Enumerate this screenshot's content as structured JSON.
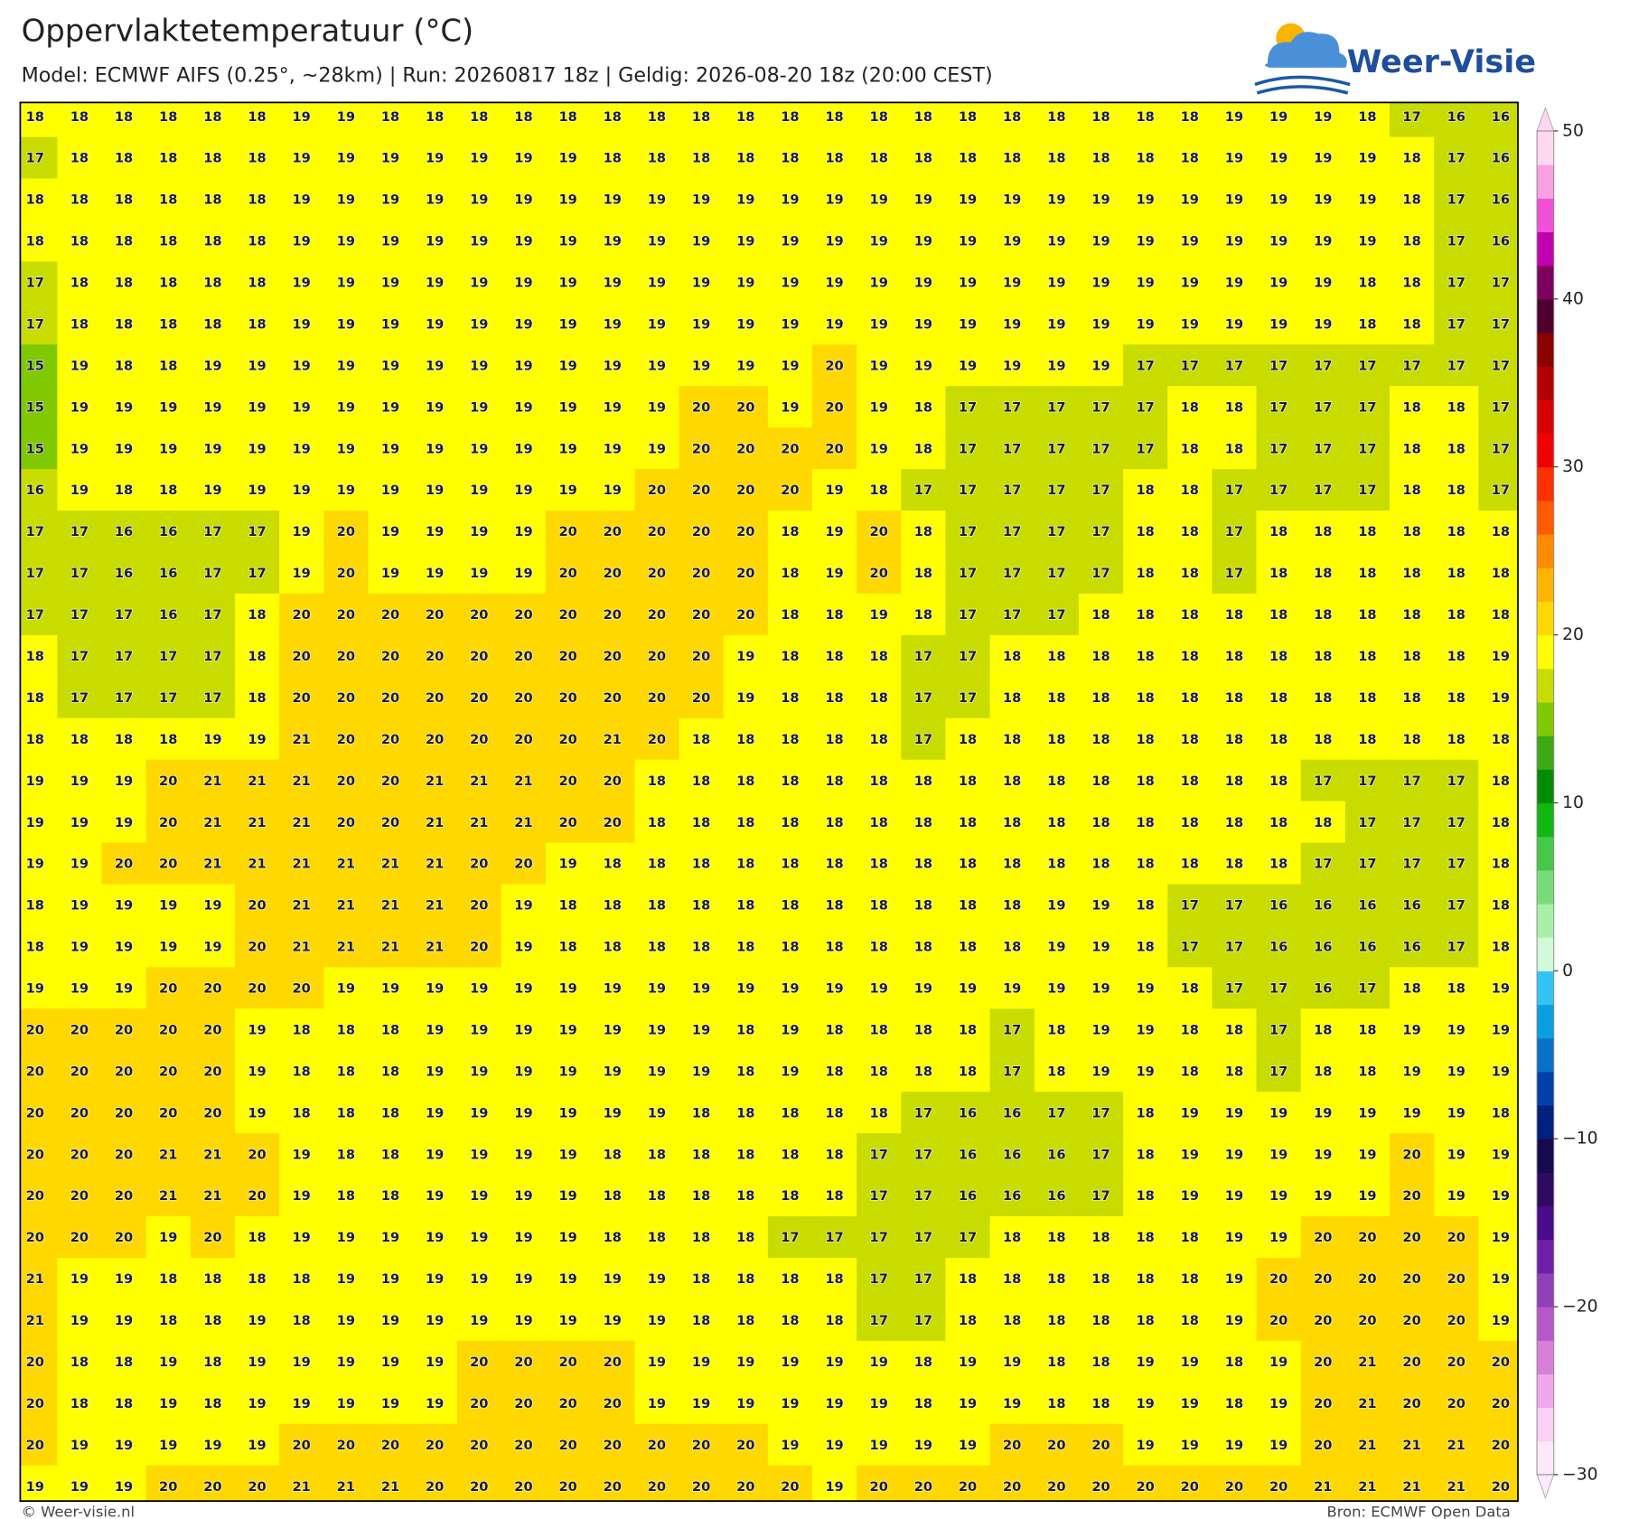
{
  "chart_data": {
    "type": "grid-map",
    "title": "Oppervlaktetemperatuur (°C)",
    "subtitle": "Model: ECMWF AIFS (0.25°, ~28km)  |  Run: 20260817 18z  |  Geldig: 2026-08-20 18z (20:00 CEST)",
    "grid": [
      [
        18,
        18,
        18,
        18,
        18,
        18,
        19,
        19,
        18,
        18,
        18,
        18,
        18,
        18,
        18,
        18,
        18,
        18,
        18,
        18,
        18,
        18,
        18,
        18,
        18,
        18,
        18,
        19,
        19,
        19,
        18,
        17,
        16,
        16
      ],
      [
        17,
        18,
        18,
        18,
        18,
        18,
        19,
        19,
        19,
        19,
        19,
        19,
        19,
        18,
        18,
        18,
        18,
        18,
        18,
        18,
        18,
        18,
        18,
        18,
        18,
        18,
        18,
        19,
        19,
        19,
        19,
        18,
        17,
        16
      ],
      [
        18,
        18,
        18,
        18,
        18,
        18,
        19,
        19,
        19,
        19,
        19,
        19,
        19,
        19,
        19,
        19,
        19,
        19,
        19,
        19,
        19,
        19,
        19,
        19,
        19,
        19,
        19,
        19,
        19,
        19,
        19,
        18,
        17,
        16
      ],
      [
        18,
        18,
        18,
        18,
        18,
        18,
        19,
        19,
        19,
        19,
        19,
        19,
        19,
        19,
        19,
        19,
        19,
        19,
        19,
        19,
        19,
        19,
        19,
        19,
        19,
        19,
        19,
        19,
        19,
        19,
        19,
        18,
        17,
        16
      ],
      [
        17,
        18,
        18,
        18,
        18,
        18,
        19,
        19,
        19,
        19,
        19,
        19,
        19,
        19,
        19,
        19,
        19,
        19,
        19,
        19,
        19,
        19,
        19,
        19,
        19,
        19,
        19,
        19,
        19,
        19,
        18,
        18,
        17,
        17
      ],
      [
        17,
        18,
        18,
        18,
        18,
        18,
        19,
        19,
        19,
        19,
        19,
        19,
        19,
        19,
        19,
        19,
        19,
        19,
        19,
        19,
        19,
        19,
        19,
        19,
        19,
        19,
        19,
        19,
        19,
        19,
        18,
        18,
        17,
        17
      ],
      [
        15,
        19,
        18,
        18,
        19,
        19,
        19,
        19,
        19,
        19,
        19,
        19,
        19,
        19,
        19,
        19,
        19,
        19,
        20,
        19,
        19,
        19,
        19,
        19,
        19,
        17,
        17,
        17,
        17,
        17,
        17,
        17,
        17,
        17
      ],
      [
        15,
        19,
        19,
        19,
        19,
        19,
        19,
        19,
        19,
        19,
        19,
        19,
        19,
        19,
        19,
        20,
        20,
        19,
        20,
        19,
        18,
        17,
        17,
        17,
        17,
        17,
        18,
        18,
        17,
        17,
        17,
        18,
        18,
        17
      ],
      [
        15,
        19,
        19,
        19,
        19,
        19,
        19,
        19,
        19,
        19,
        19,
        19,
        19,
        19,
        19,
        20,
        20,
        20,
        20,
        19,
        18,
        17,
        17,
        17,
        17,
        17,
        18,
        18,
        17,
        17,
        17,
        18,
        18,
        17
      ],
      [
        16,
        19,
        18,
        18,
        19,
        19,
        19,
        19,
        19,
        19,
        19,
        19,
        19,
        19,
        20,
        20,
        20,
        20,
        19,
        18,
        17,
        17,
        17,
        17,
        17,
        18,
        18,
        17,
        17,
        17,
        17,
        18,
        18,
        17
      ],
      [
        17,
        17,
        16,
        16,
        17,
        17,
        19,
        20,
        19,
        19,
        19,
        19,
        20,
        20,
        20,
        20,
        20,
        18,
        19,
        20,
        18,
        17,
        17,
        17,
        17,
        18,
        18,
        17,
        18,
        18,
        18,
        18,
        18,
        18
      ],
      [
        17,
        17,
        16,
        16,
        17,
        17,
        19,
        20,
        19,
        19,
        19,
        19,
        20,
        20,
        20,
        20,
        20,
        18,
        19,
        20,
        18,
        17,
        17,
        17,
        17,
        18,
        18,
        17,
        18,
        18,
        18,
        18,
        18,
        18
      ],
      [
        17,
        17,
        17,
        16,
        17,
        18,
        20,
        20,
        20,
        20,
        20,
        20,
        20,
        20,
        20,
        20,
        20,
        18,
        18,
        19,
        18,
        17,
        17,
        17,
        18,
        18,
        18,
        18,
        18,
        18,
        18,
        18,
        18,
        18
      ],
      [
        18,
        17,
        17,
        17,
        17,
        18,
        20,
        20,
        20,
        20,
        20,
        20,
        20,
        20,
        20,
        20,
        19,
        18,
        18,
        18,
        17,
        17,
        18,
        18,
        18,
        18,
        18,
        18,
        18,
        18,
        18,
        18,
        18,
        19
      ],
      [
        18,
        17,
        17,
        17,
        17,
        18,
        20,
        20,
        20,
        20,
        20,
        20,
        20,
        20,
        20,
        20,
        19,
        18,
        18,
        18,
        17,
        17,
        18,
        18,
        18,
        18,
        18,
        18,
        18,
        18,
        18,
        18,
        18,
        19
      ],
      [
        18,
        18,
        18,
        18,
        19,
        19,
        21,
        20,
        20,
        20,
        20,
        20,
        20,
        21,
        20,
        18,
        18,
        18,
        18,
        18,
        17,
        18,
        18,
        18,
        18,
        18,
        18,
        18,
        18,
        18,
        18,
        18,
        18,
        18
      ],
      [
        19,
        19,
        19,
        20,
        21,
        21,
        21,
        20,
        20,
        21,
        21,
        21,
        20,
        20,
        18,
        18,
        18,
        18,
        18,
        18,
        18,
        18,
        18,
        18,
        18,
        18,
        18,
        18,
        18,
        17,
        17,
        17,
        17,
        18
      ],
      [
        19,
        19,
        19,
        20,
        21,
        21,
        21,
        20,
        20,
        21,
        21,
        21,
        20,
        20,
        18,
        18,
        18,
        18,
        18,
        18,
        18,
        18,
        18,
        18,
        18,
        18,
        18,
        18,
        18,
        18,
        17,
        17,
        17,
        18
      ],
      [
        19,
        19,
        20,
        20,
        21,
        21,
        21,
        21,
        21,
        21,
        20,
        20,
        19,
        18,
        18,
        18,
        18,
        18,
        18,
        18,
        18,
        18,
        18,
        18,
        18,
        18,
        18,
        18,
        18,
        17,
        17,
        17,
        17,
        18
      ],
      [
        18,
        19,
        19,
        19,
        19,
        20,
        21,
        21,
        21,
        21,
        20,
        19,
        18,
        18,
        18,
        18,
        18,
        18,
        18,
        18,
        18,
        18,
        18,
        19,
        19,
        18,
        17,
        17,
        16,
        16,
        16,
        16,
        17,
        18
      ],
      [
        18,
        19,
        19,
        19,
        19,
        20,
        21,
        21,
        21,
        21,
        20,
        19,
        18,
        18,
        18,
        18,
        18,
        18,
        18,
        18,
        18,
        18,
        18,
        19,
        19,
        18,
        17,
        17,
        16,
        16,
        16,
        16,
        17,
        18
      ],
      [
        19,
        19,
        19,
        20,
        20,
        20,
        20,
        19,
        19,
        19,
        19,
        19,
        19,
        19,
        19,
        19,
        19,
        19,
        19,
        19,
        19,
        19,
        19,
        19,
        19,
        19,
        18,
        17,
        17,
        16,
        17,
        18,
        18,
        19
      ],
      [
        20,
        20,
        20,
        20,
        20,
        19,
        18,
        18,
        18,
        19,
        19,
        19,
        19,
        19,
        19,
        19,
        18,
        19,
        18,
        18,
        18,
        18,
        17,
        18,
        19,
        19,
        18,
        18,
        17,
        18,
        18,
        19,
        19,
        19
      ],
      [
        20,
        20,
        20,
        20,
        20,
        19,
        18,
        18,
        18,
        19,
        19,
        19,
        19,
        19,
        19,
        19,
        18,
        19,
        18,
        18,
        18,
        18,
        17,
        18,
        19,
        19,
        18,
        18,
        17,
        18,
        18,
        19,
        19,
        19
      ],
      [
        20,
        20,
        20,
        20,
        20,
        19,
        18,
        18,
        18,
        19,
        19,
        19,
        19,
        19,
        19,
        18,
        18,
        18,
        18,
        18,
        17,
        16,
        16,
        17,
        17,
        18,
        19,
        19,
        19,
        19,
        19,
        19,
        19,
        18
      ],
      [
        20,
        20,
        20,
        21,
        21,
        20,
        19,
        18,
        18,
        19,
        19,
        19,
        19,
        18,
        18,
        18,
        18,
        18,
        18,
        17,
        17,
        16,
        16,
        16,
        17,
        18,
        19,
        19,
        19,
        19,
        19,
        20,
        19,
        19
      ],
      [
        20,
        20,
        20,
        21,
        21,
        20,
        19,
        18,
        18,
        19,
        19,
        19,
        19,
        18,
        18,
        18,
        18,
        18,
        18,
        17,
        17,
        16,
        16,
        16,
        17,
        18,
        19,
        19,
        19,
        19,
        19,
        20,
        19,
        19
      ],
      [
        20,
        20,
        20,
        19,
        20,
        18,
        19,
        19,
        19,
        19,
        19,
        19,
        19,
        18,
        18,
        18,
        18,
        17,
        17,
        17,
        17,
        17,
        18,
        18,
        18,
        18,
        18,
        19,
        19,
        20,
        20,
        20,
        20,
        19
      ],
      [
        21,
        19,
        19,
        18,
        18,
        18,
        18,
        19,
        19,
        19,
        19,
        19,
        19,
        19,
        19,
        18,
        18,
        18,
        18,
        17,
        17,
        18,
        18,
        18,
        18,
        18,
        18,
        19,
        20,
        20,
        20,
        20,
        20,
        19
      ],
      [
        21,
        19,
        19,
        18,
        18,
        19,
        18,
        19,
        19,
        19,
        19,
        19,
        19,
        19,
        19,
        18,
        18,
        18,
        18,
        17,
        17,
        18,
        18,
        18,
        18,
        18,
        18,
        19,
        20,
        20,
        20,
        20,
        20,
        19
      ],
      [
        20,
        18,
        18,
        19,
        18,
        19,
        19,
        19,
        19,
        19,
        20,
        20,
        20,
        20,
        19,
        19,
        19,
        19,
        19,
        19,
        18,
        19,
        19,
        18,
        18,
        19,
        19,
        18,
        19,
        20,
        21,
        20,
        20,
        20
      ],
      [
        20,
        18,
        18,
        19,
        18,
        19,
        19,
        19,
        19,
        19,
        20,
        20,
        20,
        20,
        19,
        19,
        19,
        19,
        19,
        19,
        18,
        19,
        19,
        18,
        18,
        19,
        19,
        18,
        19,
        20,
        21,
        20,
        20,
        20
      ],
      [
        20,
        19,
        19,
        19,
        19,
        19,
        20,
        20,
        20,
        20,
        20,
        20,
        20,
        20,
        20,
        20,
        20,
        19,
        19,
        19,
        19,
        19,
        20,
        20,
        20,
        19,
        19,
        19,
        19,
        20,
        21,
        21,
        21,
        20
      ],
      [
        19,
        19,
        19,
        20,
        20,
        20,
        21,
        21,
        21,
        20,
        20,
        20,
        20,
        20,
        20,
        20,
        20,
        20,
        19,
        20,
        20,
        20,
        20,
        20,
        20,
        20,
        20,
        20,
        20,
        21,
        21,
        21,
        21,
        20
      ]
    ],
    "colorbar": {
      "lim": [
        -30,
        50
      ],
      "ticks": [
        50,
        40,
        30,
        20,
        10,
        0,
        {
          "value": -10,
          "label": "−10"
        },
        {
          "value": -20,
          "label": "−20"
        },
        {
          "value": -30,
          "label": "−30"
        }
      ],
      "levels": [
        -30,
        -28,
        -26,
        -24,
        -22,
        -20,
        -18,
        -16,
        -14,
        -12,
        -10,
        -8,
        -6,
        -4,
        -2,
        0,
        2,
        4,
        6,
        8,
        10,
        12,
        14,
        16,
        18,
        20,
        22,
        24,
        26,
        28,
        30,
        32,
        34,
        36,
        38,
        40,
        42,
        44,
        46,
        48,
        50
      ],
      "colors": [
        "#fde8fb",
        "#fbd0f5",
        "#f0a8ec",
        "#d880d8",
        "#b858c8",
        "#9040b8",
        "#7020a8",
        "#4a0a8c",
        "#2e0a60",
        "#160a50",
        "#002080",
        "#0040a8",
        "#0870c8",
        "#0aa0e0",
        "#33c4f5",
        "#d0fad8",
        "#a8f0a8",
        "#78dd78",
        "#48c848",
        "#10b810",
        "#008c00",
        "#3caa14",
        "#80c800",
        "#c8dc00",
        "#ffff00",
        "#ffd800",
        "#ffb400",
        "#ff8c00",
        "#ff5a00",
        "#ff3000",
        "#f00000",
        "#d80000",
        "#b40000",
        "#8c0000",
        "#500030",
        "#800060",
        "#c000b0",
        "#f050d8",
        "#f8a0e0",
        "#ffd8f0"
      ]
    }
  },
  "logo": "Weer-Visie",
  "footer": {
    "copyright": "© Weer-visie.nl",
    "source": "Bron: ECMWF Open Data"
  }
}
